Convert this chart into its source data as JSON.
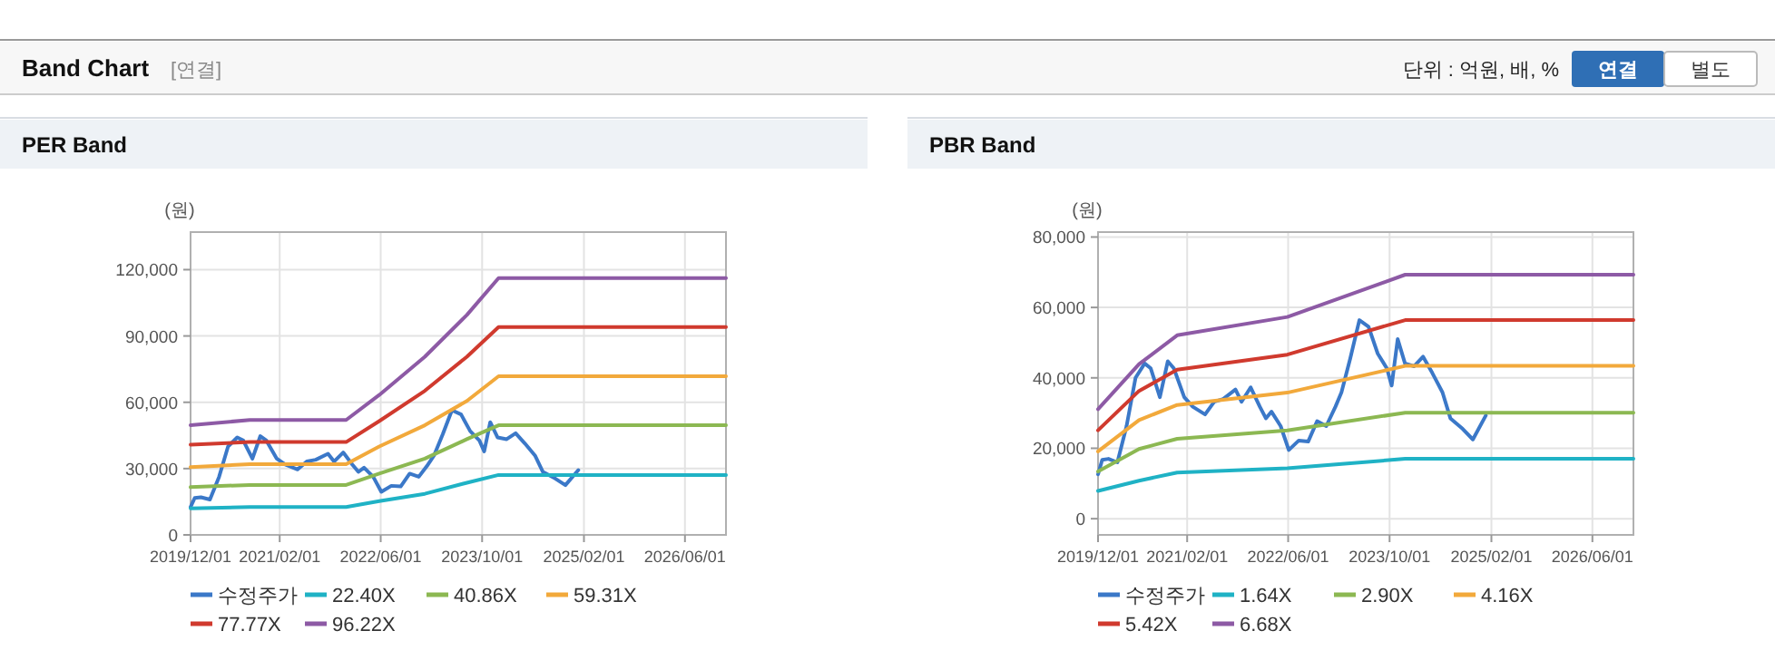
{
  "chart_data": [
    {
      "type": "other",
      "title": "Band Chart",
      "annotations": [
        "[연결]",
        "단위 : 억원, 배, %",
        "연결",
        "별도"
      ]
    },
    {
      "type": "line",
      "title": "PER Band",
      "ylabel": "(원)",
      "xlim": [
        "2019-12-01",
        "2026-12-15"
      ],
      "ylim": [
        0,
        137000
      ],
      "xticks": [
        {
          "value": "2019-12-01",
          "label": "2019/12/01"
        },
        {
          "value": "2021-02-01",
          "label": "2021/02/01"
        },
        {
          "value": "2022-06-01",
          "label": "2022/06/01"
        },
        {
          "value": "2023-10-01",
          "label": "2023/10/01"
        },
        {
          "value": "2025-02-01",
          "label": "2025/02/01"
        },
        {
          "value": "2026-06-01",
          "label": "2026/06/01"
        }
      ],
      "yticks": [
        {
          "value": 0,
          "label": "0"
        },
        {
          "value": 30000,
          "label": "30,000"
        },
        {
          "value": 60000,
          "label": "60,000"
        },
        {
          "value": 90000,
          "label": "90,000"
        },
        {
          "value": 120000,
          "label": "120,000"
        }
      ],
      "grid": true,
      "legend": "bottom",
      "marker": "none",
      "line_style": "solid",
      "series": [
        {
          "name": "수정주가",
          "color": "#3b78c8",
          "x": [
            "2019-12-01",
            "2019-12-21",
            "2020-01-20",
            "2020-03-03",
            "2020-04-16",
            "2020-05-29",
            "2020-07-12",
            "2020-08-10",
            "2020-09-23",
            "2020-10-31",
            "2020-11-29",
            "2021-01-18",
            "2021-02-28",
            "2021-04-28",
            "2021-06-11",
            "2021-07-24",
            "2021-09-21",
            "2021-10-20",
            "2021-12-03",
            "2022-01-16",
            "2022-02-14",
            "2022-03-13",
            "2022-04-26",
            "2022-06-04",
            "2022-07-22",
            "2022-09-05",
            "2022-10-18",
            "2022-12-01",
            "2023-01-14",
            "2023-02-12",
            "2023-03-26",
            "2023-05-09",
            "2023-06-22",
            "2023-08-05",
            "2023-09-18",
            "2023-10-11",
            "2023-11-09",
            "2023-12-14",
            "2024-01-27",
            "2024-03-10",
            "2024-04-23",
            "2024-06-11",
            "2024-07-19",
            "2024-09-16",
            "2024-11-04",
            "2025-01-05"
          ],
          "values": [
            12600,
            16700,
            17000,
            16000,
            26300,
            40000,
            44100,
            42700,
            34500,
            44700,
            42700,
            34500,
            31800,
            29600,
            33200,
            34000,
            36700,
            33200,
            37300,
            31800,
            28500,
            30400,
            26300,
            19500,
            22200,
            21900,
            27700,
            26300,
            31800,
            35900,
            45500,
            56400,
            54500,
            46900,
            42700,
            37800,
            51000,
            44100,
            43300,
            46000,
            41400,
            35900,
            28500,
            25500,
            22500,
            29300
          ]
        },
        {
          "name": "22.40X",
          "color": "#1fb2c5",
          "x": [
            "2019-12-01",
            "2020-09-10",
            "2021-12-17",
            "2022-05-25",
            "2022-12-30",
            "2023-07-20",
            "2023-12-19",
            "2026-12-15"
          ],
          "values": [
            12000,
            12600,
            12600,
            15300,
            18600,
            23600,
            27100,
            27100
          ]
        },
        {
          "name": "40.86X",
          "color": "#8cb852",
          "x": [
            "2019-12-01",
            "2020-09-10",
            "2021-12-17",
            "2022-05-25",
            "2022-12-30",
            "2023-07-20",
            "2023-12-19",
            "2026-12-15"
          ],
          "values": [
            21600,
            22600,
            22600,
            27700,
            34500,
            43300,
            49600,
            49600
          ]
        },
        {
          "name": "59.31X",
          "color": "#f2a93b",
          "x": [
            "2019-12-01",
            "2020-09-10",
            "2021-12-17",
            "2022-05-25",
            "2022-12-30",
            "2023-07-20",
            "2023-12-19",
            "2026-12-15"
          ],
          "values": [
            30700,
            32000,
            32000,
            40000,
            49600,
            60600,
            71800,
            71800
          ]
        },
        {
          "name": "77.77X",
          "color": "#d03a2e",
          "x": [
            "2019-12-01",
            "2020-09-10",
            "2021-12-17",
            "2022-05-25",
            "2022-12-30",
            "2023-07-20",
            "2023-12-19",
            "2026-12-15"
          ],
          "values": [
            40800,
            42000,
            42000,
            51500,
            65200,
            80600,
            94000,
            94000
          ]
        },
        {
          "name": "96.22X",
          "color": "#8d5aa5",
          "x": [
            "2019-12-01",
            "2020-09-10",
            "2021-12-17",
            "2022-05-25",
            "2022-12-30",
            "2023-07-20",
            "2023-12-19",
            "2026-12-15"
          ],
          "values": [
            49600,
            52000,
            52000,
            63300,
            80600,
            99500,
            116200,
            116200
          ]
        }
      ]
    },
    {
      "type": "line",
      "title": "PBR Band",
      "ylabel": "(원)",
      "xlim": [
        "2019-12-01",
        "2026-12-15"
      ],
      "ylim": [
        -4600,
        81400
      ],
      "xticks": [
        {
          "value": "2019-12-01",
          "label": "2019/12/01"
        },
        {
          "value": "2021-02-01",
          "label": "2021/02/01"
        },
        {
          "value": "2022-06-01",
          "label": "2022/06/01"
        },
        {
          "value": "2023-10-01",
          "label": "2023/10/01"
        },
        {
          "value": "2025-02-01",
          "label": "2025/02/01"
        },
        {
          "value": "2026-06-01",
          "label": "2026/06/01"
        }
      ],
      "yticks": [
        {
          "value": 0,
          "label": "0"
        },
        {
          "value": 20000,
          "label": "20,000"
        },
        {
          "value": 40000,
          "label": "40,000"
        },
        {
          "value": 60000,
          "label": "60,000"
        },
        {
          "value": 80000,
          "label": "80,000"
        }
      ],
      "grid": true,
      "legend": "bottom",
      "marker": "none",
      "line_style": "solid",
      "series": [
        {
          "name": "수정주가",
          "color": "#3b78c8",
          "x": [
            "2019-12-01",
            "2019-12-21",
            "2020-01-20",
            "2020-03-03",
            "2020-04-16",
            "2020-05-29",
            "2020-07-12",
            "2020-08-10",
            "2020-09-23",
            "2020-10-31",
            "2020-11-29",
            "2021-01-18",
            "2021-02-28",
            "2021-04-28",
            "2021-06-11",
            "2021-07-24",
            "2021-09-21",
            "2021-10-20",
            "2021-12-03",
            "2022-01-16",
            "2022-02-14",
            "2022-03-13",
            "2022-04-26",
            "2022-06-04",
            "2022-07-22",
            "2022-09-05",
            "2022-10-18",
            "2022-12-01",
            "2023-01-14",
            "2023-02-12",
            "2023-03-26",
            "2023-05-09",
            "2023-06-22",
            "2023-08-05",
            "2023-09-18",
            "2023-10-11",
            "2023-11-09",
            "2023-12-14",
            "2024-01-27",
            "2024-03-10",
            "2024-04-23",
            "2024-06-11",
            "2024-07-19",
            "2024-09-16",
            "2024-11-04",
            "2025-01-05"
          ],
          "values": [
            12600,
            16700,
            17000,
            16000,
            26300,
            40000,
            44100,
            42700,
            34500,
            44700,
            42700,
            34500,
            31800,
            29600,
            33200,
            34000,
            36700,
            33200,
            37300,
            31800,
            28500,
            30400,
            26300,
            19500,
            22200,
            21900,
            27700,
            26300,
            31800,
            35900,
            45500,
            56400,
            54500,
            46900,
            42700,
            37800,
            51000,
            44100,
            43300,
            46000,
            41400,
            35900,
            28500,
            25500,
            22500,
            29300
          ]
        },
        {
          "name": "1.64X",
          "color": "#1fb2c5",
          "x": [
            "2019-12-01",
            "2020-06-15",
            "2020-12-15",
            "2022-05-28",
            "2023-12-15",
            "2026-12-15"
          ],
          "values": [
            7900,
            10800,
            13100,
            14300,
            17000,
            17000
          ]
        },
        {
          "name": "2.90X",
          "color": "#8cb852",
          "x": [
            "2019-12-01",
            "2020-06-15",
            "2020-12-15",
            "2022-05-28",
            "2023-12-15",
            "2026-12-15"
          ],
          "values": [
            13400,
            19800,
            22700,
            25100,
            30100,
            30100
          ]
        },
        {
          "name": "4.16X",
          "color": "#f2a93b",
          "x": [
            "2019-12-01",
            "2020-06-15",
            "2020-12-15",
            "2022-05-28",
            "2023-12-15",
            "2026-12-15"
          ],
          "values": [
            19100,
            28000,
            32300,
            35800,
            43400,
            43400
          ]
        },
        {
          "name": "5.42X",
          "color": "#d03a2e",
          "x": [
            "2019-12-01",
            "2020-06-15",
            "2020-12-15",
            "2022-05-28",
            "2023-12-15",
            "2026-12-15"
          ],
          "values": [
            25100,
            36300,
            42300,
            46600,
            56400,
            56400
          ]
        },
        {
          "name": "6.68X",
          "color": "#8d5aa5",
          "x": [
            "2019-12-01",
            "2020-06-15",
            "2020-12-15",
            "2022-05-28",
            "2023-12-15",
            "2026-12-15"
          ],
          "values": [
            31100,
            43900,
            52100,
            57300,
            69300,
            69300
          ]
        }
      ]
    }
  ]
}
